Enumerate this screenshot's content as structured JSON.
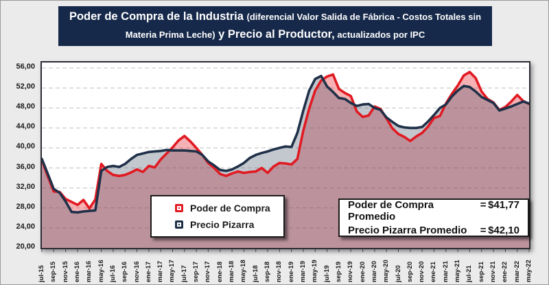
{
  "title": {
    "line1": [
      {
        "text": "Poder de Compra de la Industria ",
        "style": "large"
      },
      {
        "text": "(diferencial Valor Salida de Fábrica - Costos Totales sin",
        "style": "small"
      }
    ],
    "line2": [
      {
        "text": "Materia Prima Leche)",
        "style": "small"
      },
      {
        "text": " y Precio al Productor,",
        "style": "large"
      },
      {
        "text": " actualizados por IPC",
        "style": "small"
      }
    ]
  },
  "y_axis": {
    "tick_labels": [
      "56,00",
      "52,00",
      "48,00",
      "44,00",
      "40,00",
      "36,00",
      "32,00",
      "28,00",
      "24,00",
      "20,00"
    ],
    "min": 20,
    "max": 56,
    "step": 4
  },
  "x_axis": {
    "tick_labels": [
      "jul-15",
      "sep-15",
      "nov-15",
      "ene-16",
      "mar-16",
      "may-16",
      "jul-16",
      "sep-16",
      "nov-16",
      "ene-17",
      "mar-17",
      "may-17",
      "jul-17",
      "sep-17",
      "nov-17",
      "ene-18",
      "mar-18",
      "may-18",
      "jul-18",
      "sep-18",
      "nov-18",
      "ene-19",
      "mar-19",
      "may-19",
      "jul-19",
      "sep-19",
      "nov-19",
      "ene-20",
      "mar-20",
      "may-20",
      "jul-20",
      "sep-20",
      "nov-20",
      "ene-21",
      "mar-21",
      "may-21",
      "jul-21",
      "sep-21",
      "nov-21",
      "ene-22",
      "mar-22",
      "may-22"
    ]
  },
  "legend": {
    "items": [
      {
        "label": "Poder de Compra",
        "color": "#E11A22"
      },
      {
        "label": "Precio Pizarra",
        "color": "#1F3048"
      }
    ]
  },
  "stats_box": {
    "rows": [
      {
        "label": "Poder de Compra Promedio",
        "equals": "=",
        "value": "$41,77"
      },
      {
        "label": "Precio Pizarra Promedio",
        "equals": "=",
        "value": "$42,10"
      }
    ]
  },
  "chart_data": {
    "type": "area",
    "x": [
      "jul-15",
      "ago-15",
      "sep-15",
      "oct-15",
      "nov-15",
      "dic-15",
      "ene-16",
      "feb-16",
      "mar-16",
      "abr-16",
      "may-16",
      "jun-16",
      "jul-16",
      "ago-16",
      "sep-16",
      "oct-16",
      "nov-16",
      "dic-16",
      "ene-17",
      "feb-17",
      "mar-17",
      "abr-17",
      "may-17",
      "jun-17",
      "jul-17",
      "ago-17",
      "sep-17",
      "oct-17",
      "nov-17",
      "dic-17",
      "ene-18",
      "feb-18",
      "mar-18",
      "abr-18",
      "may-18",
      "jun-18",
      "jul-18",
      "ago-18",
      "sep-18",
      "oct-18",
      "nov-18",
      "dic-18",
      "ene-19",
      "feb-19",
      "mar-19",
      "abr-19",
      "may-19",
      "jun-19",
      "jul-19",
      "ago-19",
      "sep-19",
      "oct-19",
      "nov-19",
      "dic-19",
      "ene-20",
      "feb-20",
      "mar-20",
      "abr-20",
      "may-20",
      "jun-20",
      "jul-20",
      "ago-20",
      "sep-20",
      "oct-20",
      "nov-20",
      "dic-20",
      "ene-21",
      "feb-21",
      "mar-21",
      "abr-21",
      "may-21",
      "jun-21",
      "jul-21",
      "ago-21",
      "sep-21",
      "oct-21",
      "nov-21",
      "dic-21",
      "ene-22",
      "feb-22",
      "mar-22",
      "abr-22",
      "may-22"
    ],
    "series": [
      {
        "id": "poder-de-compra",
        "name": "Poder de Compra",
        "color": "#E11A22",
        "fill_color": "#E11A22",
        "fill_opacity": 0.34,
        "values": [
          37.6,
          34.3,
          31.3,
          31.2,
          29.8,
          29.2,
          28.6,
          29.6,
          27.9,
          29.7,
          36.8,
          35.4,
          34.6,
          34.4,
          34.6,
          35.1,
          35.7,
          35.2,
          36.4,
          36.1,
          37.7,
          38.9,
          40.1,
          41.5,
          42.4,
          41.3,
          40.0,
          38.6,
          37.0,
          36.0,
          34.8,
          34.4,
          34.9,
          35.3,
          35.0,
          35.2,
          35.3,
          36.0,
          35.0,
          36.3,
          37.0,
          36.9,
          36.7,
          37.8,
          43.5,
          47.9,
          51.5,
          53.5,
          54.3,
          54.7,
          51.8,
          51.0,
          50.4,
          47.3,
          46.2,
          46.5,
          48.3,
          47.8,
          45.9,
          43.9,
          42.8,
          42.2,
          41.4,
          42.3,
          43.0,
          44.3,
          46.0,
          46.4,
          48.9,
          50.8,
          52.5,
          54.5,
          55.2,
          54.0,
          51.3,
          49.8,
          49.1,
          47.6,
          48.2,
          49.3,
          50.6,
          49.4,
          48.8
        ]
      },
      {
        "id": "precio-pizarra",
        "name": "Precio Pizarra",
        "color": "#1F3048",
        "fill_color": "#44546A",
        "fill_opacity": 0.32,
        "values": [
          37.8,
          34.8,
          31.8,
          31.0,
          29.3,
          27.2,
          27.1,
          27.3,
          27.4,
          27.5,
          35.4,
          36.2,
          36.4,
          36.2,
          36.8,
          37.8,
          38.6,
          38.9,
          39.2,
          39.3,
          39.4,
          39.6,
          39.5,
          39.5,
          39.5,
          39.4,
          39.3,
          38.6,
          37.3,
          36.5,
          35.6,
          35.4,
          35.7,
          36.3,
          37.0,
          38.0,
          38.6,
          39.0,
          39.3,
          39.7,
          40.0,
          40.3,
          40.2,
          43.0,
          47.5,
          51.5,
          53.8,
          54.4,
          52.3,
          51.2,
          50.0,
          49.8,
          49.0,
          48.4,
          48.7,
          48.8,
          48.0,
          47.6,
          46.1,
          45.2,
          44.4,
          44.1,
          44.0,
          44.0,
          44.2,
          45.3,
          46.6,
          48.0,
          48.7,
          50.3,
          51.5,
          52.4,
          52.2,
          51.3,
          50.2,
          49.6,
          49.0,
          47.5,
          47.9,
          48.3,
          48.8,
          49.3,
          48.9
        ]
      }
    ],
    "ylim": [
      20,
      56
    ],
    "ygrid_step": 4,
    "grid": "horizontal-dashed",
    "legend_position": "inside-bottom-left",
    "averages": {
      "poder_de_compra": 41.77,
      "precio_pizarra": 42.1
    }
  }
}
